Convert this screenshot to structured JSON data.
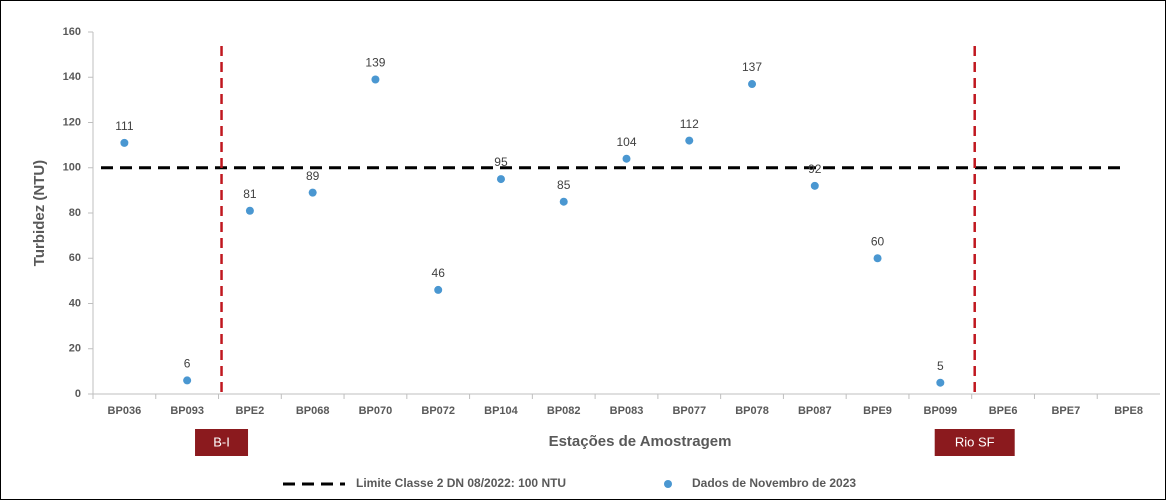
{
  "chart_data": {
    "type": "scatter",
    "x_label": "Estações de Amostragem",
    "y_label": "Turbidez (NTU)",
    "categories": [
      "BP036",
      "BP093",
      "BPE2",
      "BP068",
      "BP070",
      "BP072",
      "BP104",
      "BP082",
      "BP083",
      "BP077",
      "BP078",
      "BP087",
      "BPE9",
      "BP099",
      "BPE6",
      "BPE7",
      "BPE8"
    ],
    "series": [
      {
        "name": "Dados de Novembro de 2023",
        "color": "#4a97d1",
        "values": [
          111,
          6,
          81,
          89,
          139,
          46,
          95,
          85,
          104,
          112,
          137,
          92,
          60,
          5,
          null,
          null,
          null
        ]
      }
    ],
    "reference_line": {
      "name": "Limite Classe 2 DN 08/2022: 100 NTU",
      "value": 100,
      "color": "#000000"
    },
    "dividers": [
      {
        "label": "B-I",
        "between": [
          "BP093",
          "BPE2"
        ],
        "color": "#c0171f"
      },
      {
        "label": "Rio SF",
        "between": [
          "BP099",
          "BPE6"
        ],
        "color": "#c0171f"
      }
    ],
    "ylim": [
      0,
      160
    ],
    "yticks": [
      0,
      20,
      40,
      60,
      80,
      100,
      120,
      140,
      160
    ]
  }
}
